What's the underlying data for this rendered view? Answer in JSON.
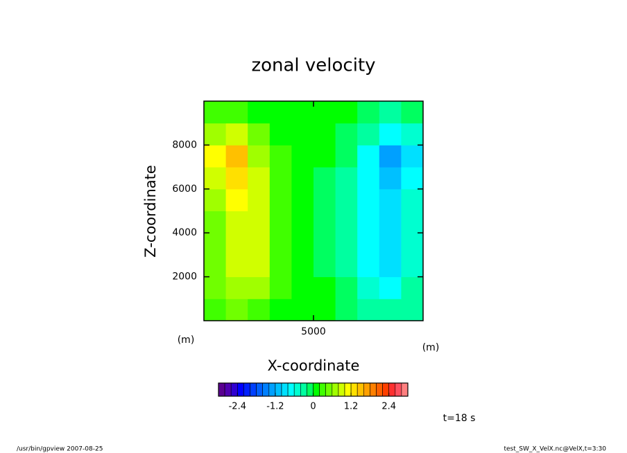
{
  "chart_data": {
    "type": "contour",
    "title": "zonal velocity",
    "xlabel": "X-coordinate",
    "ylabel": "Z-coordinate",
    "xunit": "(m)",
    "yunit": "(m)",
    "annotation": "t=18 s",
    "footer_left": "/usr/bin/gpview  2007-08-25",
    "footer_right": "test_SW_X_VelX.nc@VelX,t=3:30",
    "x": [
      500,
      1500,
      2500,
      3500,
      4500,
      5500,
      6500,
      7500,
      8500,
      9500
    ],
    "y": [
      500,
      1500,
      2500,
      3500,
      4500,
      5500,
      6500,
      7500,
      8500,
      9500
    ],
    "values": [
      [
        0.3,
        0.4,
        0.3,
        0.1,
        0,
        0,
        -0.1,
        -0.3,
        -0.4,
        -0.3
      ],
      [
        0.4,
        0.7,
        0.6,
        0.2,
        0,
        0,
        -0.2,
        -0.6,
        -0.7,
        -0.4
      ],
      [
        0.5,
        0.9,
        0.8,
        0.3,
        0.1,
        -0.1,
        -0.3,
        -0.8,
        -0.9,
        -0.5
      ],
      [
        0.5,
        0.9,
        0.8,
        0.3,
        0.1,
        -0.1,
        -0.3,
        -0.8,
        -0.95,
        -0.5
      ],
      [
        0.5,
        0.9,
        0.8,
        0.3,
        0.1,
        -0.1,
        -0.3,
        -0.8,
        -0.9,
        -0.5
      ],
      [
        0.6,
        1.0,
        0.8,
        0.3,
        0.1,
        -0.1,
        -0.3,
        -0.8,
        -1.0,
        -0.6
      ],
      [
        0.8,
        1.2,
        0.8,
        0.3,
        0.1,
        -0.1,
        -0.3,
        -0.8,
        -1.1,
        -0.7
      ],
      [
        1.0,
        1.5,
        0.7,
        0.2,
        0,
        0,
        -0.2,
        -0.7,
        -1.4,
        -0.9
      ],
      [
        0.6,
        0.8,
        0.4,
        0.1,
        0,
        0,
        -0.1,
        -0.4,
        -0.8,
        -0.5
      ],
      [
        0.2,
        0.3,
        0.1,
        0,
        0,
        0,
        0,
        -0.1,
        -0.3,
        -0.2
      ]
    ],
    "xlim": [
      0,
      10000
    ],
    "ylim": [
      0,
      10000
    ],
    "xticks": [
      5000
    ],
    "yticks": [
      2000,
      4000,
      6000,
      8000
    ],
    "levels": [
      -3,
      -2.8,
      -2.6,
      -2.4,
      -2.2,
      -2,
      -1.8,
      -1.6,
      -1.4,
      -1.2,
      -1,
      -0.8,
      -0.6,
      -0.4,
      -0.2,
      0,
      0.2,
      0.4,
      0.6,
      0.8,
      1,
      1.2,
      1.4,
      1.6,
      1.8,
      2,
      2.2,
      2.4,
      2.6,
      2.8,
      3
    ],
    "colors": [
      "#5a0090",
      "#5000b0",
      "#3000d0",
      "#0000ff",
      "#0020ff",
      "#0040ff",
      "#0060ff",
      "#0080ff",
      "#00a0ff",
      "#00c0ff",
      "#00e0ff",
      "#00ffff",
      "#00ffd0",
      "#00ffa0",
      "#00ff60",
      "#00ff00",
      "#40ff00",
      "#70ff00",
      "#a0ff00",
      "#d0ff00",
      "#ffff00",
      "#ffe000",
      "#ffc000",
      "#ffa000",
      "#ff8000",
      "#ff6000",
      "#ff4000",
      "#ff3030",
      "#ff5060",
      "#ff8080"
    ],
    "colorbar_ticks": [
      -2.4,
      -1.2,
      0,
      1.2,
      2.4
    ]
  }
}
